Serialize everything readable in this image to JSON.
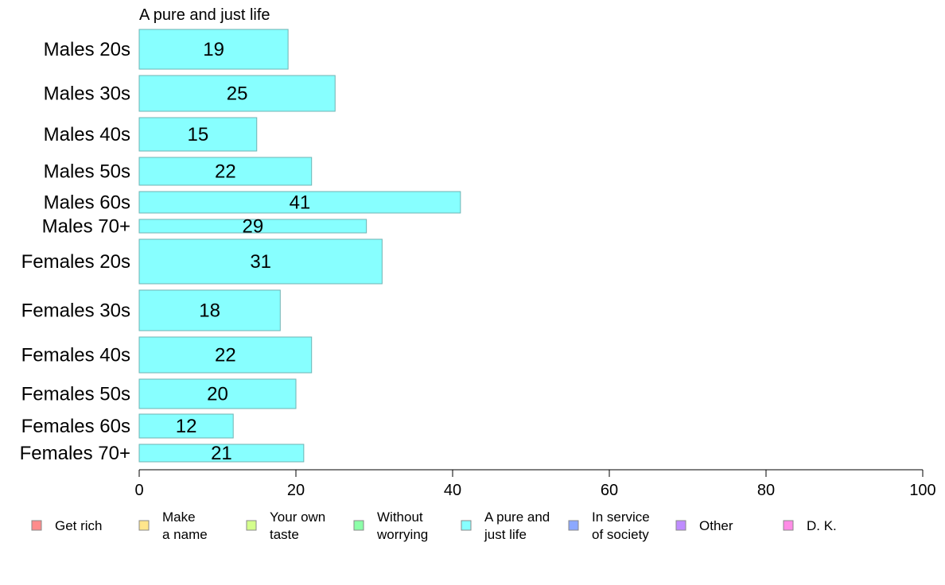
{
  "chart_data": {
    "type": "bar",
    "orientation": "horizontal",
    "title": "A pure and just life",
    "xlim": [
      0,
      100
    ],
    "xticks": [
      0,
      20,
      40,
      60,
      80,
      100
    ],
    "grid": false,
    "categories": [
      "Males 20s",
      "Males 30s",
      "Males 40s",
      "Males 50s",
      "Males 60s",
      "Males 70+",
      "Females 20s",
      "Females 30s",
      "Females 40s",
      "Females 50s",
      "Females 60s",
      "Females 70+"
    ],
    "values": [
      19,
      25,
      15,
      22,
      41,
      29,
      31,
      18,
      22,
      20,
      12,
      21
    ],
    "bar_color": "#87FFFF",
    "bar_stroke": "#6FB3B3",
    "legend_position": "bottom",
    "legend": [
      {
        "lines": [
          "Get rich"
        ],
        "color": "#FF8C8C"
      },
      {
        "lines": [
          "Make",
          "a name"
        ],
        "color": "#FFE68C"
      },
      {
        "lines": [
          "Your own",
          "taste"
        ],
        "color": "#D4FF8C"
      },
      {
        "lines": [
          "Without",
          "worrying"
        ],
        "color": "#8CFFA8"
      },
      {
        "lines": [
          "A pure and",
          "just life"
        ],
        "color": "#87FFFF"
      },
      {
        "lines": [
          "In service",
          "of society"
        ],
        "color": "#8CA8FF"
      },
      {
        "lines": [
          "Other"
        ],
        "color": "#BF8CFF"
      },
      {
        "lines": [
          "D. K."
        ],
        "color": "#FF8CE6"
      }
    ]
  }
}
